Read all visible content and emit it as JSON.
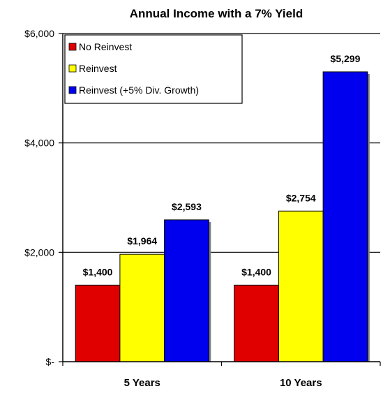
{
  "chart_data": {
    "type": "bar",
    "title": "Annual Income with a 7% Yield",
    "categories": [
      "5 Years",
      "10 Years"
    ],
    "series": [
      {
        "name": "No Reinvest",
        "values": [
          1400,
          1400
        ],
        "labels": [
          "$1,400",
          "$1,400"
        ],
        "color": "#e00000"
      },
      {
        "name": "Reinvest",
        "values": [
          1964,
          2754
        ],
        "labels": [
          "$1,964",
          "$2,754"
        ],
        "color": "#ffff00"
      },
      {
        "name": "Reinvest (+5% Div. Growth)",
        "values": [
          2593,
          5299
        ],
        "labels": [
          "$2,593",
          "$5,299"
        ],
        "color": "#0000ee"
      }
    ],
    "ylim": [
      0,
      6000
    ],
    "yticks": [
      {
        "value": 0,
        "label": "$-"
      },
      {
        "value": 2000,
        "label": "$2,000"
      },
      {
        "value": 4000,
        "label": "$4,000"
      },
      {
        "value": 6000,
        "label": "$6,000"
      }
    ],
    "grid": true,
    "legend": "top-left"
  }
}
